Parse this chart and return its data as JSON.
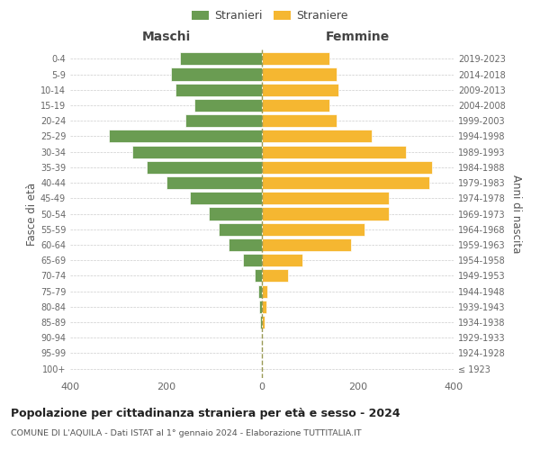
{
  "age_groups": [
    "100+",
    "95-99",
    "90-94",
    "85-89",
    "80-84",
    "75-79",
    "70-74",
    "65-69",
    "60-64",
    "55-59",
    "50-54",
    "45-49",
    "40-44",
    "35-39",
    "30-34",
    "25-29",
    "20-24",
    "15-19",
    "10-14",
    "5-9",
    "0-4"
  ],
  "birth_years": [
    "≤ 1923",
    "1924-1928",
    "1929-1933",
    "1934-1938",
    "1939-1943",
    "1944-1948",
    "1949-1953",
    "1954-1958",
    "1959-1963",
    "1964-1968",
    "1969-1973",
    "1974-1978",
    "1979-1983",
    "1984-1988",
    "1989-1993",
    "1994-1998",
    "1999-2003",
    "2004-2008",
    "2009-2013",
    "2014-2018",
    "2019-2023"
  ],
  "maschi": [
    0,
    0,
    0,
    4,
    6,
    8,
    15,
    40,
    70,
    90,
    110,
    150,
    200,
    240,
    270,
    320,
    160,
    140,
    180,
    190,
    170
  ],
  "femmine": [
    0,
    0,
    0,
    5,
    10,
    12,
    55,
    85,
    185,
    215,
    265,
    265,
    350,
    355,
    300,
    230,
    155,
    140,
    160,
    155,
    140
  ],
  "male_color": "#6a9c52",
  "female_color": "#f5b731",
  "bar_edge_color": "white",
  "title": "Popolazione per cittadinanza straniera per età e sesso - 2024",
  "subtitle": "COMUNE DI L'AQUILA - Dati ISTAT al 1° gennaio 2024 - Elaborazione TUTTITALIA.IT",
  "xlabel_left": "Maschi",
  "xlabel_right": "Femmine",
  "ylabel_left": "Fasce di età",
  "ylabel_right": "Anni di nascita",
  "legend_male": "Stranieri",
  "legend_female": "Straniere",
  "xlim": 400,
  "background_color": "#ffffff",
  "grid_color": "#cccccc"
}
